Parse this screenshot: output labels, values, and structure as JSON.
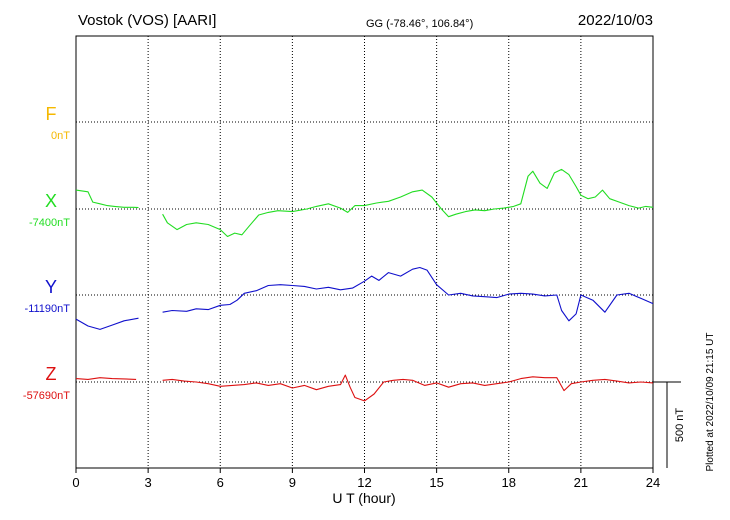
{
  "header": {
    "station": "Vostok (VOS)  [AARI]",
    "coords": "GG (-78.46°, 106.84°)",
    "date": "2022/10/03"
  },
  "side_note": "Plotted at 2022/10/09 21:15 UT",
  "scale_label": "500 nT",
  "colors": {
    "F": "#f5b800",
    "X": "#22dd22",
    "Y": "#1010cc",
    "Z": "#dd1111",
    "grid": "#000000"
  },
  "chart_data": {
    "type": "line",
    "xlabel": "U T (hour)",
    "xlim": [
      0,
      24
    ],
    "x_ticks": [
      "0",
      "3",
      "6",
      "9",
      "12",
      "15",
      "18",
      "21",
      "24"
    ],
    "scale_nT": 500,
    "series": [
      {
        "name": "F",
        "color_key": "F",
        "baseline_label": "0nT",
        "baseline_nT": 0,
        "segments": []
      },
      {
        "name": "X",
        "color_key": "X",
        "baseline_label": "-7400nT",
        "baseline_nT": -7400,
        "segments": [
          {
            "x": [
              0,
              0.5,
              0.7,
              1.0,
              1.3,
              1.6,
              2.0,
              2.4,
              2.6
            ],
            "y": [
              110,
              100,
              40,
              30,
              20,
              15,
              10,
              10,
              8
            ]
          },
          {
            "x": [
              3.6,
              3.8,
              4.2,
              4.6,
              5.0,
              5.5,
              6.0,
              6.3,
              6.6,
              6.9,
              7.2,
              7.6,
              8.0,
              8.4,
              9.0,
              9.6,
              10.0,
              10.5,
              11.0,
              11.3,
              11.6,
              12.0,
              12.5,
              13.0,
              13.5,
              14.0,
              14.4,
              14.8,
              15.2,
              15.5,
              15.8,
              16.2,
              16.6,
              17.0,
              17.4,
              17.8,
              18.2,
              18.5,
              18.8,
              19.0,
              19.3,
              19.6,
              19.9,
              20.2,
              20.5,
              20.8,
              21.0,
              21.3,
              21.6,
              21.9,
              22.2,
              22.6,
              23.0,
              23.4,
              23.7,
              24.0
            ],
            "y": [
              -30,
              -80,
              -120,
              -90,
              -80,
              -90,
              -120,
              -160,
              -140,
              -150,
              -100,
              -35,
              -20,
              -10,
              -15,
              0,
              15,
              30,
              5,
              -20,
              20,
              20,
              35,
              45,
              70,
              100,
              110,
              70,
              0,
              -45,
              -30,
              -15,
              -5,
              -10,
              0,
              5,
              15,
              30,
              190,
              220,
              150,
              120,
              210,
              230,
              200,
              130,
              80,
              60,
              70,
              110,
              60,
              40,
              20,
              5,
              15,
              10
            ]
          }
        ]
      },
      {
        "name": "Y",
        "color_key": "Y",
        "baseline_label": "-11190nT",
        "baseline_nT": -11190,
        "segments": [
          {
            "x": [
              0,
              0.5,
              1.0,
              1.5,
              2.0,
              2.6
            ],
            "y": [
              -140,
              -180,
              -200,
              -175,
              -150,
              -135
            ]
          },
          {
            "x": [
              3.6,
              4.0,
              4.6,
              5.0,
              5.5,
              6.0,
              6.4,
              6.7,
              7.0,
              7.5,
              8.0,
              8.5,
              9.0,
              9.5,
              10.0,
              10.5,
              11.0,
              11.5,
              12.0,
              12.3,
              12.6,
              13.0,
              13.5,
              14.0,
              14.3,
              14.6,
              15.0,
              15.5,
              16.0,
              16.5,
              17.0,
              17.5,
              18.0,
              18.5,
              19.0,
              19.5,
              20.0,
              20.2,
              20.5,
              20.8,
              21.0,
              21.5,
              22.0,
              22.5,
              23.0,
              23.5,
              24.0
            ],
            "y": [
              -100,
              -90,
              -95,
              -80,
              -85,
              -60,
              -55,
              -30,
              10,
              25,
              55,
              60,
              55,
              50,
              35,
              45,
              30,
              40,
              80,
              110,
              85,
              130,
              110,
              150,
              160,
              145,
              60,
              0,
              10,
              -5,
              -10,
              -15,
              5,
              10,
              5,
              -5,
              0,
              -90,
              -150,
              -110,
              0,
              -30,
              -100,
              0,
              10,
              -20,
              -50
            ]
          }
        ]
      },
      {
        "name": "Z",
        "color_key": "Z",
        "baseline_label": "-57690nT",
        "baseline_nT": -57690,
        "segments": [
          {
            "x": [
              0,
              0.5,
              1.0,
              1.5,
              2.0,
              2.5
            ],
            "y": [
              20,
              15,
              25,
              20,
              18,
              15
            ]
          },
          {
            "x": [
              3.6,
              4.0,
              4.5,
              5.0,
              5.5,
              6.0,
              6.5,
              7.0,
              7.5,
              8.0,
              8.5,
              9.0,
              9.5,
              10.0,
              10.5,
              11.0,
              11.2,
              11.4,
              11.6,
              12.0,
              12.4,
              12.8,
              13.2,
              13.6,
              14.0,
              14.5,
              15.0,
              15.5,
              16.0,
              16.5,
              17.0,
              17.5,
              18.0,
              18.5,
              19.0,
              19.5,
              20.0,
              20.3,
              20.6,
              21.0,
              21.5,
              22.0,
              22.5,
              23.0,
              23.5,
              24.0
            ],
            "y": [
              10,
              15,
              5,
              0,
              -10,
              -25,
              -20,
              -15,
              -5,
              -20,
              -10,
              -35,
              -20,
              -45,
              -25,
              -15,
              40,
              -30,
              -90,
              -110,
              -70,
              0,
              10,
              15,
              10,
              -20,
              -5,
              -30,
              -10,
              -5,
              -20,
              -10,
              0,
              20,
              30,
              25,
              25,
              -50,
              -10,
              0,
              10,
              15,
              5,
              -5,
              0,
              -5
            ]
          }
        ]
      }
    ]
  }
}
